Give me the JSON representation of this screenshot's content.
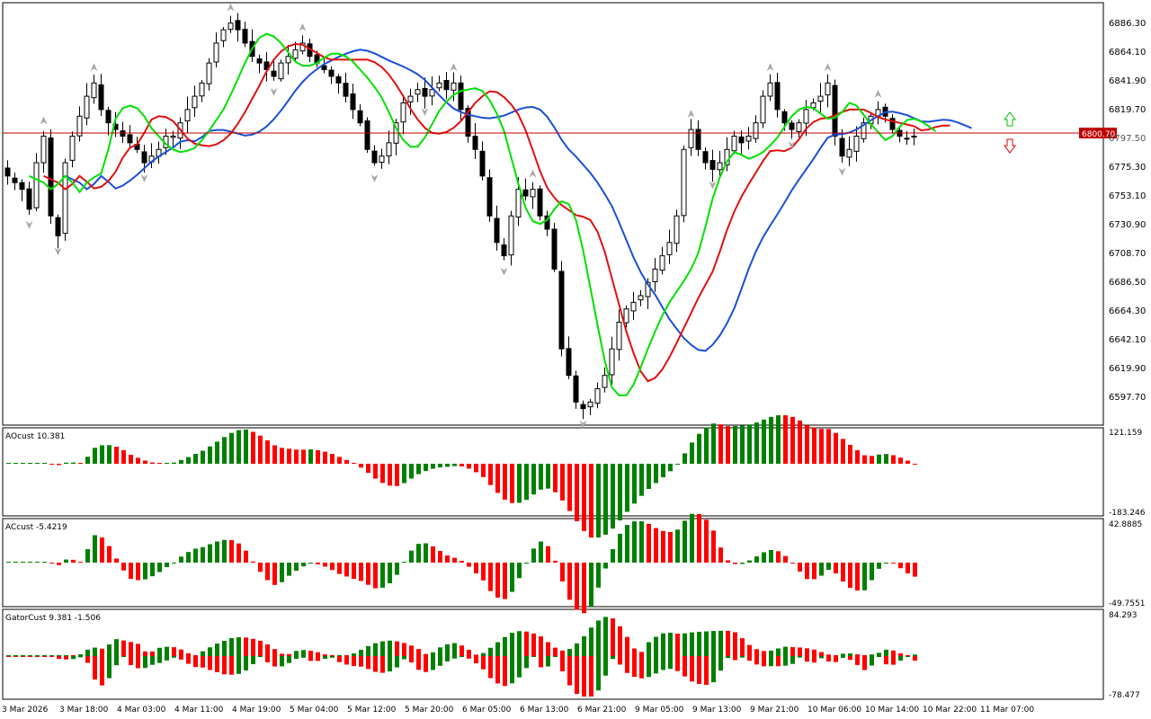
{
  "main": {
    "price_axis_labels": [
      "6886.30",
      "6864.10",
      "6841.90",
      "6819.70",
      "6797.50",
      "6775.30",
      "6753.10",
      "6730.90",
      "6708.70",
      "6686.50",
      "6664.30",
      "6642.10",
      "6619.90",
      "6597.70"
    ],
    "current_price": "6800.70",
    "colors": {
      "bull_body": "#ffffff",
      "bear_body": "#000000",
      "jaw": "#1a4fd6",
      "teeth": "#e01010",
      "lips": "#00e000",
      "price_line": "#c00000",
      "fractal": "#a8a8a8"
    }
  },
  "time_axis_labels": [
    "3 Mar 2026",
    "3 Mar 18:00",
    "4 Mar 03:00",
    "4 Mar 11:00",
    "4 Mar 19:00",
    "5 Mar 04:00",
    "5 Mar 12:00",
    "5 Mar 20:00",
    "6 Mar 05:00",
    "6 Mar 13:00",
    "6 Mar 21:00",
    "9 Mar 05:00",
    "9 Mar 13:00",
    "9 Mar 21:00",
    "10 Mar 06:00",
    "10 Mar 14:00",
    "10 Mar 22:00",
    "11 Mar 07:00"
  ],
  "panels": {
    "ao": {
      "label": "AOcust 10.381",
      "max_label": "121.159",
      "min_label": "-183.246",
      "colors": {
        "up": "#008000",
        "down": "#ff0000"
      }
    },
    "ac": {
      "label": "ACcust -5.4219",
      "max_label": "42.8885",
      "min_label": "-49.7551",
      "colors": {
        "up": "#008000",
        "down": "#ff0000"
      }
    },
    "gator": {
      "label": "GatorCust 9.381 -1.506",
      "max_label": "84.293",
      "min_label": "-78.477",
      "colors": {
        "up": "#008000",
        "down": "#ff0000"
      }
    }
  },
  "chart_data": {
    "type": "candlestick",
    "price_range": [
      6586,
      6897
    ],
    "series": [
      {
        "name": "price",
        "closes": [
          6770,
          6765,
          6760,
          6745,
          6780,
          6800,
          6740,
          6725,
          6780,
          6800,
          6815,
          6830,
          6840,
          6820,
          6810,
          6805,
          6800,
          6795,
          6790,
          6780,
          6785,
          6790,
          6800,
          6800,
          6810,
          6820,
          6830,
          6840,
          6855,
          6870,
          6880,
          6885,
          6880,
          6870,
          6860,
          6855,
          6850,
          6845,
          6855,
          6860,
          6865,
          6870,
          6860,
          6855,
          6850,
          6845,
          6840,
          6830,
          6820,
          6810,
          6790,
          6780,
          6785,
          6795,
          6810,
          6825,
          6830,
          6835,
          6830,
          6835,
          6840,
          6835,
          6840,
          6820,
          6800,
          6790,
          6770,
          6740,
          6720,
          6710,
          6740,
          6760,
          6755,
          6760,
          6740,
          6730,
          6700,
          6640,
          6620,
          6600,
          6595,
          6600,
          6610,
          6620,
          6640,
          6660,
          6670,
          6675,
          6680,
          6690,
          6700,
          6710,
          6720,
          6740,
          6790,
          6805,
          6790,
          6780,
          6775,
          6780,
          6790,
          6800,
          6795,
          6800,
          6810,
          6830,
          6840,
          6820,
          6810,
          6805,
          6810,
          6820,
          6825,
          6830,
          6840,
          6800,
          6785,
          6790,
          6800,
          6810,
          6815,
          6820,
          6815,
          6805,
          6800,
          6798,
          6800
        ]
      },
      {
        "name": "AOcust"
      },
      {
        "name": "ACcust"
      },
      {
        "name": "GatorCust"
      }
    ]
  }
}
